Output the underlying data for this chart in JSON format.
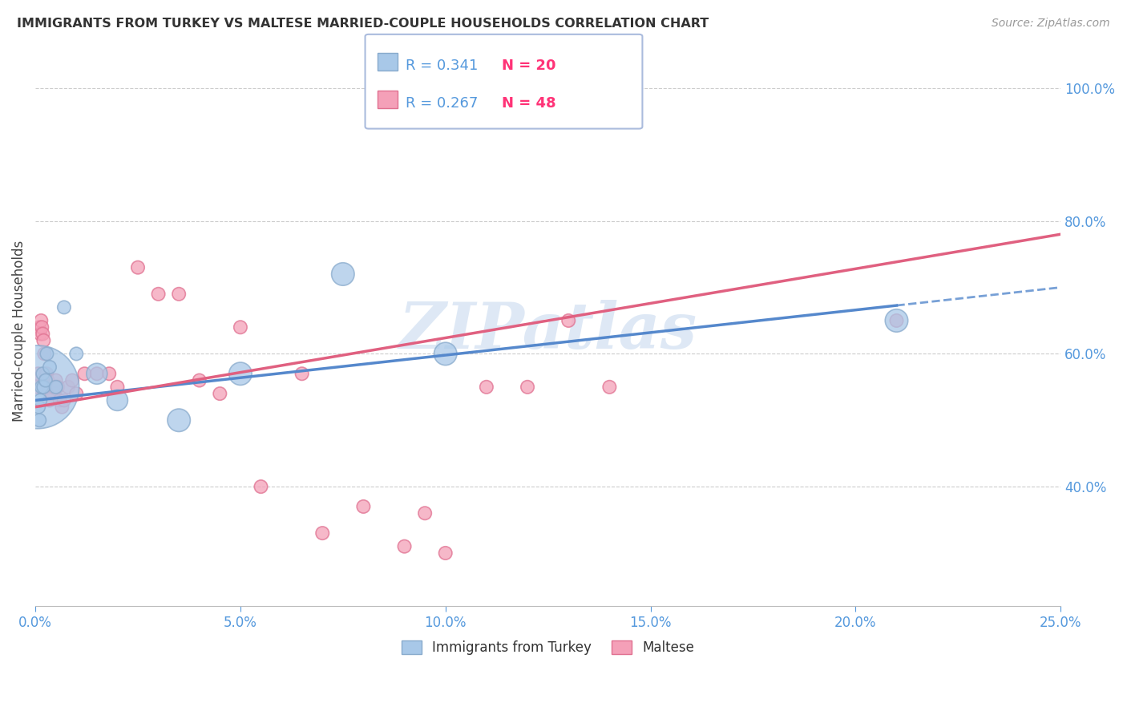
{
  "title": "IMMIGRANTS FROM TURKEY VS MALTESE MARRIED-COUPLE HOUSEHOLDS CORRELATION CHART",
  "source": "Source: ZipAtlas.com",
  "ylabel": "Married-couple Households",
  "xlabel_ticks": [
    "0.0%",
    "5.0%",
    "10.0%",
    "15.0%",
    "20.0%",
    "25.0%"
  ],
  "xlabel_vals": [
    0.0,
    5.0,
    10.0,
    15.0,
    20.0,
    25.0
  ],
  "ylabel_ticks": [
    "40.0%",
    "60.0%",
    "80.0%",
    "100.0%"
  ],
  "ylabel_vals": [
    40.0,
    60.0,
    80.0,
    100.0
  ],
  "xlim": [
    0.0,
    25.0
  ],
  "ylim": [
    22.0,
    105.0
  ],
  "series1_label": "Immigrants from Turkey",
  "series1_R": "0.341",
  "series1_N": "20",
  "series1_color": "#a8c8e8",
  "series1_edge_color": "#88aacc",
  "series1_line_color": "#5588cc",
  "series2_label": "Maltese",
  "series2_R": "0.267",
  "series2_N": "48",
  "series2_color": "#f4a0b8",
  "series2_edge_color": "#e07090",
  "series2_line_color": "#e06080",
  "series1_x": [
    0.05,
    0.08,
    0.1,
    0.12,
    0.15,
    0.18,
    0.2,
    0.25,
    0.28,
    0.35,
    0.5,
    0.7,
    1.0,
    1.5,
    2.0,
    3.5,
    5.0,
    7.5,
    10.0,
    21.0
  ],
  "series1_y": [
    55,
    52,
    50,
    53,
    55,
    57,
    55,
    56,
    60,
    58,
    55,
    67,
    60,
    57,
    53,
    50,
    57,
    72,
    60,
    65
  ],
  "series1_size": [
    800,
    20,
    20,
    20,
    20,
    20,
    20,
    20,
    20,
    20,
    20,
    20,
    20,
    50,
    50,
    60,
    60,
    60,
    60,
    60
  ],
  "series2_x": [
    0.02,
    0.05,
    0.07,
    0.1,
    0.12,
    0.14,
    0.16,
    0.18,
    0.2,
    0.22,
    0.25,
    0.28,
    0.3,
    0.32,
    0.35,
    0.38,
    0.4,
    0.45,
    0.5,
    0.55,
    0.6,
    0.65,
    0.7,
    0.8,
    0.9,
    1.0,
    1.2,
    1.5,
    1.8,
    2.0,
    2.5,
    3.0,
    3.5,
    4.0,
    4.5,
    5.0,
    5.5,
    6.5,
    7.0,
    8.0,
    9.0,
    9.5,
    10.0,
    11.0,
    12.0,
    13.0,
    14.0,
    21.0
  ],
  "series2_y": [
    56,
    55,
    57,
    64,
    63,
    65,
    64,
    63,
    62,
    60,
    57,
    57,
    56,
    55,
    53,
    55,
    54,
    55,
    56,
    55,
    53,
    52,
    53,
    55,
    56,
    54,
    57,
    57,
    57,
    55,
    73,
    69,
    69,
    56,
    54,
    64,
    40,
    57,
    33,
    37,
    31,
    36,
    30,
    55,
    55,
    65,
    55,
    65
  ],
  "series2_size": [
    20,
    20,
    20,
    20,
    20,
    20,
    20,
    20,
    20,
    20,
    20,
    20,
    20,
    20,
    20,
    20,
    20,
    20,
    20,
    20,
    20,
    20,
    20,
    20,
    20,
    20,
    20,
    20,
    20,
    20,
    20,
    20,
    20,
    20,
    20,
    20,
    20,
    20,
    20,
    20,
    20,
    20,
    20,
    20,
    20,
    20,
    20,
    20
  ],
  "watermark_text": "ZIPatlas",
  "watermark_color": "#c8daef",
  "background_color": "#ffffff",
  "grid_color": "#cccccc",
  "tick_label_color": "#5599dd",
  "title_color": "#333333",
  "legend_R_color": "#5599dd",
  "legend_N_color": "#ff3377"
}
